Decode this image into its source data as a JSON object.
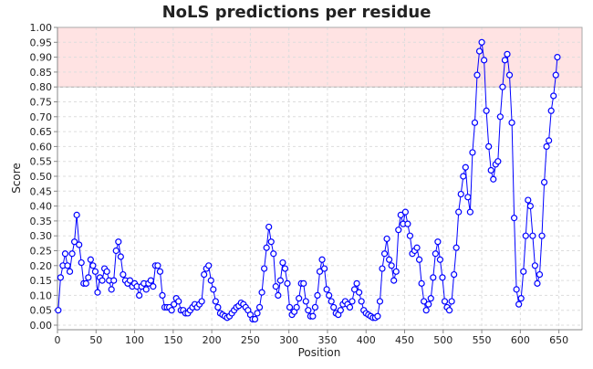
{
  "chart_data": {
    "type": "line",
    "title": "NoLS predictions per residue",
    "xlabel": "Position",
    "ylabel": "Score",
    "xlim": [
      0,
      680
    ],
    "ylim": [
      0,
      1
    ],
    "x_ticks": [
      0,
      50,
      100,
      150,
      200,
      250,
      300,
      350,
      400,
      450,
      500,
      550,
      600,
      650
    ],
    "y_ticks": [
      "0.00",
      "0.05",
      "0.10",
      "0.15",
      "0.20",
      "0.25",
      "0.30",
      "0.35",
      "0.40",
      "0.45",
      "0.50",
      "0.55",
      "0.60",
      "0.65",
      "0.70",
      "0.75",
      "0.80",
      "0.85",
      "0.90",
      "0.95",
      "1.00"
    ],
    "grid": true,
    "threshold_band": {
      "from": 0.8,
      "to": 1.0,
      "color": "#ffe3e3"
    },
    "series_color": "#0000ff",
    "marker": "open-circle",
    "x": [
      1,
      4,
      7,
      10,
      13,
      16,
      19,
      22,
      25,
      28,
      31,
      34,
      37,
      40,
      43,
      46,
      49,
      52,
      55,
      58,
      61,
      64,
      67,
      70,
      73,
      76,
      79,
      82,
      85,
      88,
      91,
      94,
      97,
      100,
      103,
      106,
      109,
      112,
      115,
      118,
      121,
      124,
      127,
      130,
      133,
      136,
      139,
      142,
      145,
      148,
      151,
      154,
      157,
      160,
      163,
      166,
      169,
      172,
      175,
      178,
      181,
      184,
      187,
      190,
      193,
      196,
      199,
      202,
      205,
      208,
      211,
      214,
      217,
      220,
      223,
      226,
      229,
      232,
      235,
      238,
      241,
      244,
      247,
      250,
      253,
      256,
      259,
      262,
      265,
      268,
      271,
      274,
      277,
      280,
      283,
      286,
      289,
      292,
      295,
      298,
      301,
      304,
      307,
      310,
      313,
      316,
      319,
      322,
      325,
      328,
      331,
      334,
      337,
      340,
      343,
      346,
      349,
      352,
      355,
      358,
      361,
      364,
      367,
      370,
      373,
      376,
      379,
      382,
      385,
      388,
      391,
      394,
      397,
      400,
      403,
      406,
      409,
      412,
      415,
      418,
      421,
      424,
      427,
      430,
      433,
      436,
      439,
      442,
      445,
      448,
      451,
      454,
      457,
      460,
      463,
      466,
      469,
      472,
      475,
      478,
      481,
      484,
      487,
      490,
      493,
      496,
      499,
      502,
      505,
      508,
      511,
      514,
      517,
      520,
      523,
      526,
      529,
      532,
      535,
      538,
      541,
      544,
      547,
      550,
      553,
      556,
      559,
      562,
      565,
      568,
      571,
      574,
      577,
      580,
      583,
      586,
      589,
      592,
      595,
      598,
      601,
      604,
      607,
      610,
      613,
      616,
      619,
      622,
      625,
      628,
      631,
      634,
      637,
      640,
      643,
      646,
      648
    ],
    "y": [
      0.05,
      0.16,
      0.2,
      0.24,
      0.2,
      0.18,
      0.24,
      0.28,
      0.37,
      0.27,
      0.21,
      0.14,
      0.14,
      0.16,
      0.22,
      0.2,
      0.18,
      0.11,
      0.16,
      0.15,
      0.19,
      0.18,
      0.15,
      0.12,
      0.15,
      0.25,
      0.28,
      0.23,
      0.17,
      0.15,
      0.14,
      0.15,
      0.13,
      0.14,
      0.13,
      0.1,
      0.13,
      0.14,
      0.12,
      0.14,
      0.15,
      0.13,
      0.2,
      0.2,
      0.18,
      0.1,
      0.06,
      0.06,
      0.06,
      0.05,
      0.07,
      0.09,
      0.08,
      0.05,
      0.05,
      0.04,
      0.04,
      0.05,
      0.06,
      0.07,
      0.06,
      0.07,
      0.08,
      0.17,
      0.19,
      0.2,
      0.15,
      0.12,
      0.08,
      0.06,
      0.04,
      0.035,
      0.03,
      0.025,
      0.03,
      0.04,
      0.05,
      0.06,
      0.065,
      0.075,
      0.07,
      0.06,
      0.05,
      0.035,
      0.02,
      0.02,
      0.04,
      0.06,
      0.11,
      0.19,
      0.26,
      0.33,
      0.28,
      0.24,
      0.13,
      0.1,
      0.15,
      0.21,
      0.19,
      0.14,
      0.06,
      0.035,
      0.045,
      0.06,
      0.09,
      0.14,
      0.14,
      0.08,
      0.05,
      0.03,
      0.03,
      0.06,
      0.1,
      0.18,
      0.22,
      0.19,
      0.12,
      0.1,
      0.08,
      0.06,
      0.04,
      0.035,
      0.05,
      0.07,
      0.08,
      0.07,
      0.06,
      0.08,
      0.12,
      0.14,
      0.11,
      0.08,
      0.05,
      0.04,
      0.035,
      0.03,
      0.025,
      0.025,
      0.03,
      0.08,
      0.19,
      0.24,
      0.29,
      0.22,
      0.2,
      0.15,
      0.18,
      0.32,
      0.37,
      0.34,
      0.38,
      0.34,
      0.3,
      0.24,
      0.25,
      0.26,
      0.22,
      0.14,
      0.08,
      0.05,
      0.07,
      0.09,
      0.16,
      0.24,
      0.28,
      0.22,
      0.16,
      0.08,
      0.06,
      0.05,
      0.08,
      0.17,
      0.26,
      0.38,
      0.44,
      0.5,
      0.53,
      0.43,
      0.38,
      0.58,
      0.68,
      0.84,
      0.92,
      0.95,
      0.89,
      0.72,
      0.6,
      0.52,
      0.49,
      0.54,
      0.55,
      0.7,
      0.8,
      0.89,
      0.91,
      0.84,
      0.68,
      0.36,
      0.12,
      0.07,
      0.09,
      0.18,
      0.3,
      0.42,
      0.4,
      0.3,
      0.2,
      0.14,
      0.17,
      0.3,
      0.48,
      0.6,
      0.62,
      0.72,
      0.77,
      0.84,
      0.9
    ]
  }
}
